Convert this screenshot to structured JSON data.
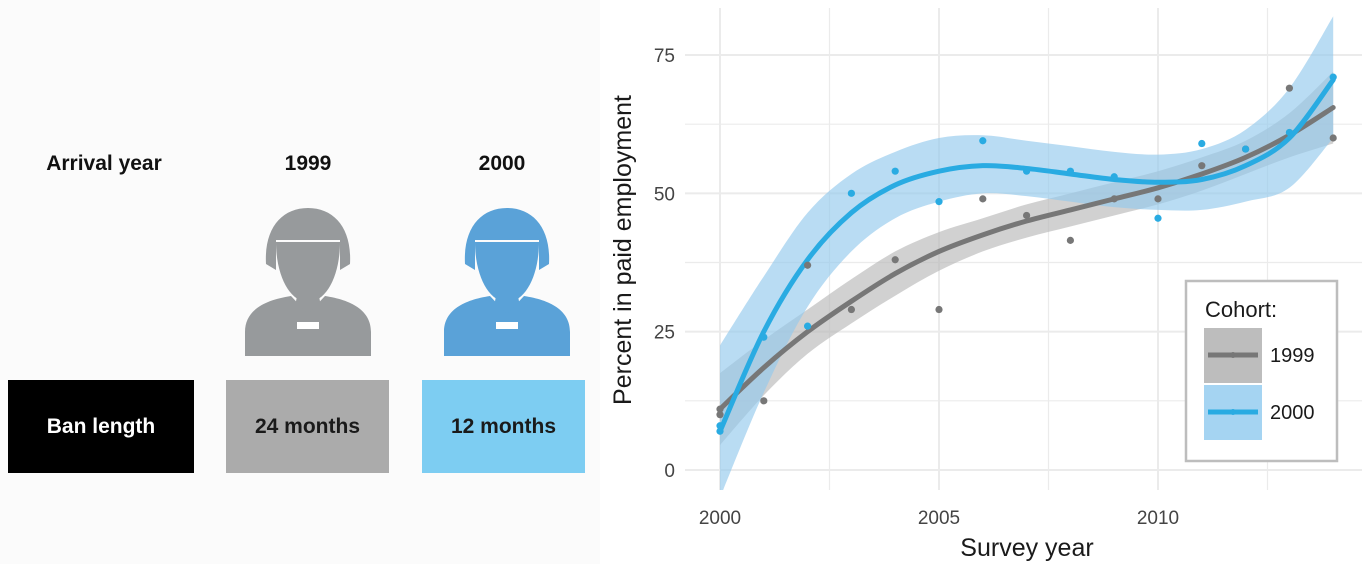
{
  "left_panel": {
    "arrival_label": "Arrival year",
    "ban_label": "Ban length",
    "cohorts": [
      {
        "year": "1999",
        "ban": "24 months",
        "color": "#979a9c",
        "box_color": "#ababab"
      },
      {
        "year": "2000",
        "ban": "12 months",
        "color": "#5aa2d8",
        "box_color": "#7dcdf2"
      }
    ]
  },
  "colors": {
    "series_1999": "#777777",
    "series_2000": "#29abe2",
    "band_1999": "#b9b9b9",
    "band_2000": "#93c9ec"
  },
  "chart_data": {
    "type": "scatter",
    "xlabel": "Survey year",
    "ylabel": "Percent in paid employment",
    "xlim": [
      2000,
      2014
    ],
    "ylim": [
      0,
      80
    ],
    "xticks": [
      2000,
      2005,
      2010
    ],
    "yticks": [
      0,
      25,
      50,
      75
    ],
    "grid": true,
    "legend": {
      "title": "Cohort:",
      "placement": "right"
    },
    "series": [
      {
        "name": "1999",
        "points": [
          [
            2000,
            10
          ],
          [
            2000,
            11
          ],
          [
            2001,
            12.5
          ],
          [
            2002,
            37
          ],
          [
            2003,
            29
          ],
          [
            2004,
            38
          ],
          [
            2005,
            29
          ],
          [
            2006,
            49
          ],
          [
            2007,
            46
          ],
          [
            2008,
            41.5
          ],
          [
            2009,
            49
          ],
          [
            2010,
            49
          ],
          [
            2011,
            55
          ],
          [
            2012,
            58
          ],
          [
            2013,
            69
          ],
          [
            2014,
            60
          ]
        ],
        "fit": [
          [
            2000,
            11
          ],
          [
            2001,
            18.5
          ],
          [
            2002,
            25
          ],
          [
            2003,
            30.5
          ],
          [
            2004,
            35.5
          ],
          [
            2005,
            39.5
          ],
          [
            2006,
            42.5
          ],
          [
            2007,
            45
          ],
          [
            2008,
            47
          ],
          [
            2009,
            49
          ],
          [
            2010,
            51
          ],
          [
            2011,
            53.5
          ],
          [
            2012,
            56.5
          ],
          [
            2013,
            60.5
          ],
          [
            2014,
            65.5
          ]
        ],
        "band": [
          [
            2000,
            4.5,
            17.5
          ],
          [
            2001,
            13.5,
            23.5
          ],
          [
            2002,
            21,
            29
          ],
          [
            2003,
            26.5,
            34.5
          ],
          [
            2004,
            31.5,
            39.5
          ],
          [
            2005,
            36,
            43
          ],
          [
            2006,
            39.5,
            45.5
          ],
          [
            2007,
            42,
            48
          ],
          [
            2008,
            44,
            50
          ],
          [
            2009,
            46,
            52
          ],
          [
            2010,
            48,
            54
          ],
          [
            2011,
            50.5,
            56.5
          ],
          [
            2012,
            53.5,
            59.5
          ],
          [
            2013,
            56.5,
            64.5
          ],
          [
            2014,
            59,
            72
          ]
        ]
      },
      {
        "name": "2000",
        "points": [
          [
            2000,
            7
          ],
          [
            2000,
            8
          ],
          [
            2001,
            24
          ],
          [
            2002,
            26
          ],
          [
            2003,
            50
          ],
          [
            2004,
            54
          ],
          [
            2005,
            48.5
          ],
          [
            2006,
            59.5
          ],
          [
            2007,
            54
          ],
          [
            2008,
            54
          ],
          [
            2009,
            53
          ],
          [
            2010,
            45.5
          ],
          [
            2011,
            59
          ],
          [
            2012,
            58
          ],
          [
            2013,
            61
          ],
          [
            2014,
            71
          ]
        ],
        "fit": [
          [
            2000,
            7
          ],
          [
            2001,
            25
          ],
          [
            2002,
            38
          ],
          [
            2003,
            46.5
          ],
          [
            2004,
            51.5
          ],
          [
            2005,
            54
          ],
          [
            2006,
            55
          ],
          [
            2007,
            54.5
          ],
          [
            2008,
            53.5
          ],
          [
            2009,
            52.5
          ],
          [
            2010,
            52
          ],
          [
            2011,
            52.5
          ],
          [
            2012,
            55
          ],
          [
            2013,
            60
          ],
          [
            2014,
            70.5
          ]
        ],
        "band": [
          [
            2000,
            -5,
            22.5
          ],
          [
            2001,
            14,
            35
          ],
          [
            2002,
            29.5,
            46.5
          ],
          [
            2003,
            39.5,
            53.5
          ],
          [
            2004,
            45.5,
            57.5
          ],
          [
            2005,
            48.5,
            60
          ],
          [
            2006,
            50,
            60.5
          ],
          [
            2007,
            49.5,
            59.5
          ],
          [
            2008,
            48.5,
            58.5
          ],
          [
            2009,
            47.5,
            57.5
          ],
          [
            2010,
            47,
            57
          ],
          [
            2011,
            47,
            58
          ],
          [
            2012,
            48.5,
            61.5
          ],
          [
            2013,
            51,
            69
          ],
          [
            2014,
            60,
            82
          ]
        ]
      }
    ]
  }
}
